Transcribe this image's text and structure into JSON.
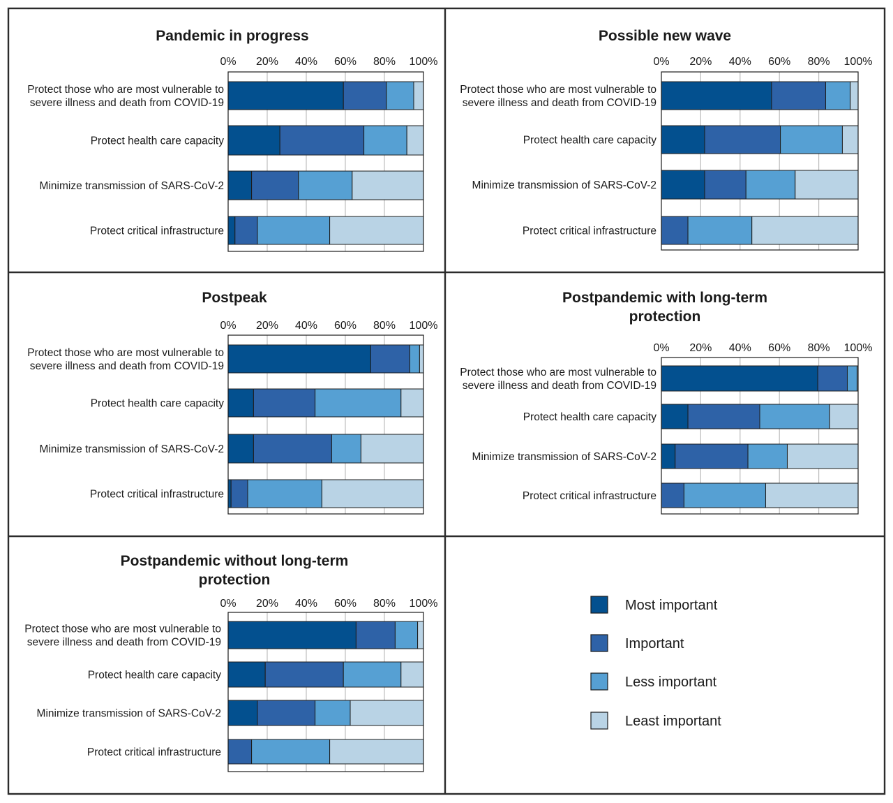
{
  "colors": {
    "most_important": "#03508f",
    "important": "#2e62a7",
    "less_important": "#56a0d3",
    "least_important": "#b9d3e5",
    "border": "#2b2b2b",
    "grid": "#bdbdbd"
  },
  "legend": {
    "items": [
      {
        "label": "Most important",
        "color": "#03508f"
      },
      {
        "label": "Important",
        "color": "#2e62a7"
      },
      {
        "label": "Less important",
        "color": "#56a0d3"
      },
      {
        "label": "Least important",
        "color": "#b9d3e5"
      }
    ]
  },
  "chart_data": [
    {
      "type": "bar",
      "orientation": "horizontal",
      "stacked": true,
      "title": [
        "Pandemic in progress"
      ],
      "x_ticks": [
        "0%",
        "20%",
        "40%",
        "60%",
        "80%",
        "100%"
      ],
      "xlim": [
        0,
        100
      ],
      "grid": true,
      "categories": [
        [
          "Protect those who are most vulnerable to",
          "severe illness and death from COVID-19"
        ],
        [
          "Protect health care capacity"
        ],
        [
          "Minimize transmission of SARS-CoV-2"
        ],
        [
          "Protect critical infrastructure"
        ]
      ],
      "series": [
        {
          "name": "Most important",
          "values": [
            59,
            26.5,
            12,
            3.5
          ]
        },
        {
          "name": "Important",
          "values": [
            22,
            43,
            24,
            11.5
          ]
        },
        {
          "name": "Less important",
          "values": [
            14,
            22,
            27.5,
            37
          ]
        },
        {
          "name": "Least important",
          "values": [
            5,
            8.5,
            36.5,
            48
          ]
        }
      ]
    },
    {
      "type": "bar",
      "orientation": "horizontal",
      "stacked": true,
      "title": [
        "Possible new wave"
      ],
      "x_ticks": [
        "0%",
        "20%",
        "40%",
        "60%",
        "80%",
        "100%"
      ],
      "xlim": [
        0,
        100
      ],
      "grid": true,
      "categories": [
        [
          "Protect those who are most vulnerable to",
          "severe illness and death from COVID-19"
        ],
        [
          "Protect health care capacity"
        ],
        [
          "Minimize transmission of SARS-CoV-2"
        ],
        [
          "Protect critical infrastructure"
        ]
      ],
      "series": [
        {
          "name": "Most important",
          "values": [
            56,
            22,
            22,
            0
          ]
        },
        {
          "name": "Important",
          "values": [
            27.5,
            38.5,
            21,
            13.5
          ]
        },
        {
          "name": "Less important",
          "values": [
            12.5,
            31.5,
            25,
            32.5
          ]
        },
        {
          "name": "Least important",
          "values": [
            4,
            8,
            32,
            54
          ]
        }
      ]
    },
    {
      "type": "bar",
      "orientation": "horizontal",
      "stacked": true,
      "title": [
        "Postpeak"
      ],
      "x_ticks": [
        "0%",
        "20%",
        "40%",
        "60%",
        "80%",
        "100%"
      ],
      "xlim": [
        0,
        100
      ],
      "grid": true,
      "categories": [
        [
          "Protect those who are most vulnerable to",
          "severe illness and death from COVID-19"
        ],
        [
          "Protect health care capacity"
        ],
        [
          "Minimize transmission of SARS-CoV-2"
        ],
        [
          "Protect critical infrastructure"
        ]
      ],
      "series": [
        {
          "name": "Most important",
          "values": [
            73,
            13,
            13,
            1.5
          ]
        },
        {
          "name": "Important",
          "values": [
            20,
            31.5,
            40,
            8.5
          ]
        },
        {
          "name": "Less important",
          "values": [
            5,
            44,
            15,
            38
          ]
        },
        {
          "name": "Least important",
          "values": [
            2,
            11.5,
            32,
            52
          ]
        }
      ]
    },
    {
      "type": "bar",
      "orientation": "horizontal",
      "stacked": true,
      "title": [
        "Postpandemic with long-term",
        "protection"
      ],
      "x_ticks": [
        "0%",
        "20%",
        "40%",
        "60%",
        "80%",
        "100%"
      ],
      "xlim": [
        0,
        100
      ],
      "grid": true,
      "categories": [
        [
          "Protect those who are most vulnerable to",
          "severe illness and death from COVID-19"
        ],
        [
          "Protect health care capacity"
        ],
        [
          "Minimize transmission of SARS-CoV-2"
        ],
        [
          "Protect critical infrastructure"
        ]
      ],
      "series": [
        {
          "name": "Most important",
          "values": [
            79.5,
            13.5,
            7,
            0
          ]
        },
        {
          "name": "Important",
          "values": [
            15,
            36.5,
            37,
            11.5
          ]
        },
        {
          "name": "Less important",
          "values": [
            5,
            35.5,
            20,
            41.5
          ]
        },
        {
          "name": "Least important",
          "values": [
            0.5,
            14.5,
            36,
            47
          ]
        }
      ]
    },
    {
      "type": "bar",
      "orientation": "horizontal",
      "stacked": true,
      "title": [
        "Postpandemic without long-term",
        "protection"
      ],
      "x_ticks": [
        "0%",
        "20%",
        "40%",
        "60%",
        "80%",
        "100%"
      ],
      "xlim": [
        0,
        100
      ],
      "grid": true,
      "categories": [
        [
          "Protect those who are most vulnerable to",
          "severe illness and death from COVID-19"
        ],
        [
          "Protect health care capacity"
        ],
        [
          "Minimize transmission of SARS-CoV-2"
        ],
        [
          "Protect critical infrastructure"
        ]
      ],
      "series": [
        {
          "name": "Most important",
          "values": [
            65.5,
            19,
            15,
            0
          ]
        },
        {
          "name": "Important",
          "values": [
            20,
            40,
            29.5,
            12
          ]
        },
        {
          "name": "Less important",
          "values": [
            11.5,
            29.5,
            18,
            40
          ]
        },
        {
          "name": "Least important",
          "values": [
            3,
            11.5,
            37.5,
            48
          ]
        }
      ]
    }
  ]
}
